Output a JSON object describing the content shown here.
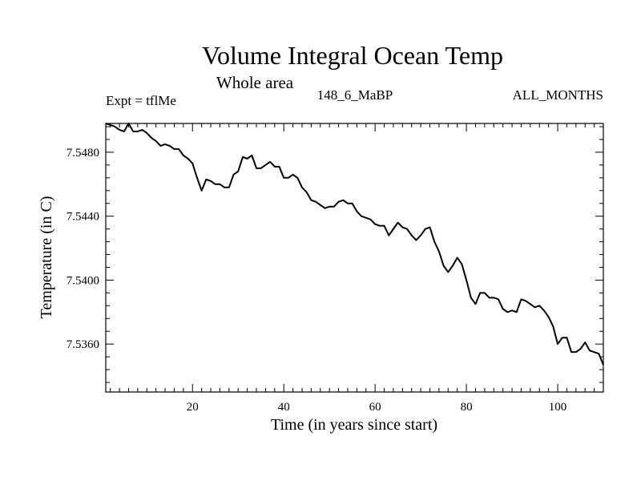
{
  "chart_data": {
    "type": "line",
    "title": "Volume Integral Ocean Temp",
    "subtitle": "Whole area",
    "left_label": "Expt = tflMe",
    "center_label": "148_6_MaBP",
    "right_label": "ALL_MONTHS",
    "xlabel": "Time (in years since start)",
    "ylabel": "Temperature (in C)",
    "xlim": [
      1,
      110
    ],
    "ylim": [
      7.533,
      7.5498
    ],
    "x_major_ticks": [
      20,
      40,
      60,
      80,
      100
    ],
    "x_tick_labels": [
      "20",
      "40",
      "60",
      "80",
      "100"
    ],
    "y_major_ticks": [
      7.536,
      7.54,
      7.544,
      7.548
    ],
    "y_tick_labels": [
      "7.5360",
      "7.5400",
      "7.5440",
      "7.5480"
    ],
    "series": [
      {
        "name": "Temperature",
        "color": "#000000",
        "x": [
          1,
          2,
          3,
          4,
          5,
          6,
          7,
          8,
          9,
          10,
          11,
          12,
          13,
          14,
          15,
          16,
          17,
          18,
          19,
          20,
          21,
          22,
          23,
          24,
          25,
          26,
          27,
          28,
          29,
          30,
          31,
          32,
          33,
          34,
          35,
          36,
          37,
          38,
          39,
          40,
          41,
          42,
          43,
          44,
          45,
          46,
          47,
          48,
          49,
          50,
          51,
          52,
          53,
          54,
          55,
          56,
          57,
          58,
          59,
          60,
          61,
          62,
          63,
          64,
          65,
          66,
          67,
          68,
          69,
          70,
          71,
          72,
          73,
          74,
          75,
          76,
          77,
          78,
          79,
          80,
          81,
          82,
          83,
          84,
          85,
          86,
          87,
          88,
          89,
          90,
          91,
          92,
          93,
          94,
          95,
          96,
          97,
          98,
          99,
          100,
          101,
          102,
          103,
          104,
          105,
          106,
          107,
          108,
          109,
          110
        ],
        "values": [
          7.5498,
          7.5497,
          7.5496,
          7.5494,
          7.5493,
          7.5498,
          7.5493,
          7.5493,
          7.5494,
          7.5492,
          7.5489,
          7.5487,
          7.5484,
          7.5485,
          7.5484,
          7.5482,
          7.5482,
          7.5478,
          7.5476,
          7.5473,
          7.5464,
          7.5456,
          7.5463,
          7.5462,
          7.546,
          7.546,
          7.5458,
          7.5458,
          7.5466,
          7.5468,
          7.5477,
          7.5476,
          7.5478,
          7.547,
          7.547,
          7.5472,
          7.5474,
          7.5471,
          7.5471,
          7.5464,
          7.5464,
          7.5466,
          7.5464,
          7.5458,
          7.5455,
          7.545,
          7.5449,
          7.5447,
          7.5445,
          7.5446,
          7.5446,
          7.5449,
          7.545,
          7.5448,
          7.5448,
          7.5443,
          7.544,
          7.5439,
          7.5438,
          7.5435,
          7.5434,
          7.5434,
          7.5428,
          7.5432,
          7.5436,
          7.5433,
          7.5432,
          7.5428,
          7.5425,
          7.5428,
          7.5432,
          7.5433,
          7.5424,
          7.5418,
          7.5409,
          7.5405,
          7.5409,
          7.5414,
          7.541,
          7.54,
          7.5389,
          7.5385,
          7.5392,
          7.5392,
          7.5389,
          7.5389,
          7.5388,
          7.5382,
          7.538,
          7.5381,
          7.538,
          7.5388,
          7.5387,
          7.5385,
          7.5383,
          7.5384,
          7.5381,
          7.5377,
          7.5371,
          7.536,
          7.5364,
          7.5364,
          7.5355,
          7.5355,
          7.5357,
          7.5361,
          7.5356,
          7.5355,
          7.5354,
          7.5347
        ]
      }
    ]
  }
}
